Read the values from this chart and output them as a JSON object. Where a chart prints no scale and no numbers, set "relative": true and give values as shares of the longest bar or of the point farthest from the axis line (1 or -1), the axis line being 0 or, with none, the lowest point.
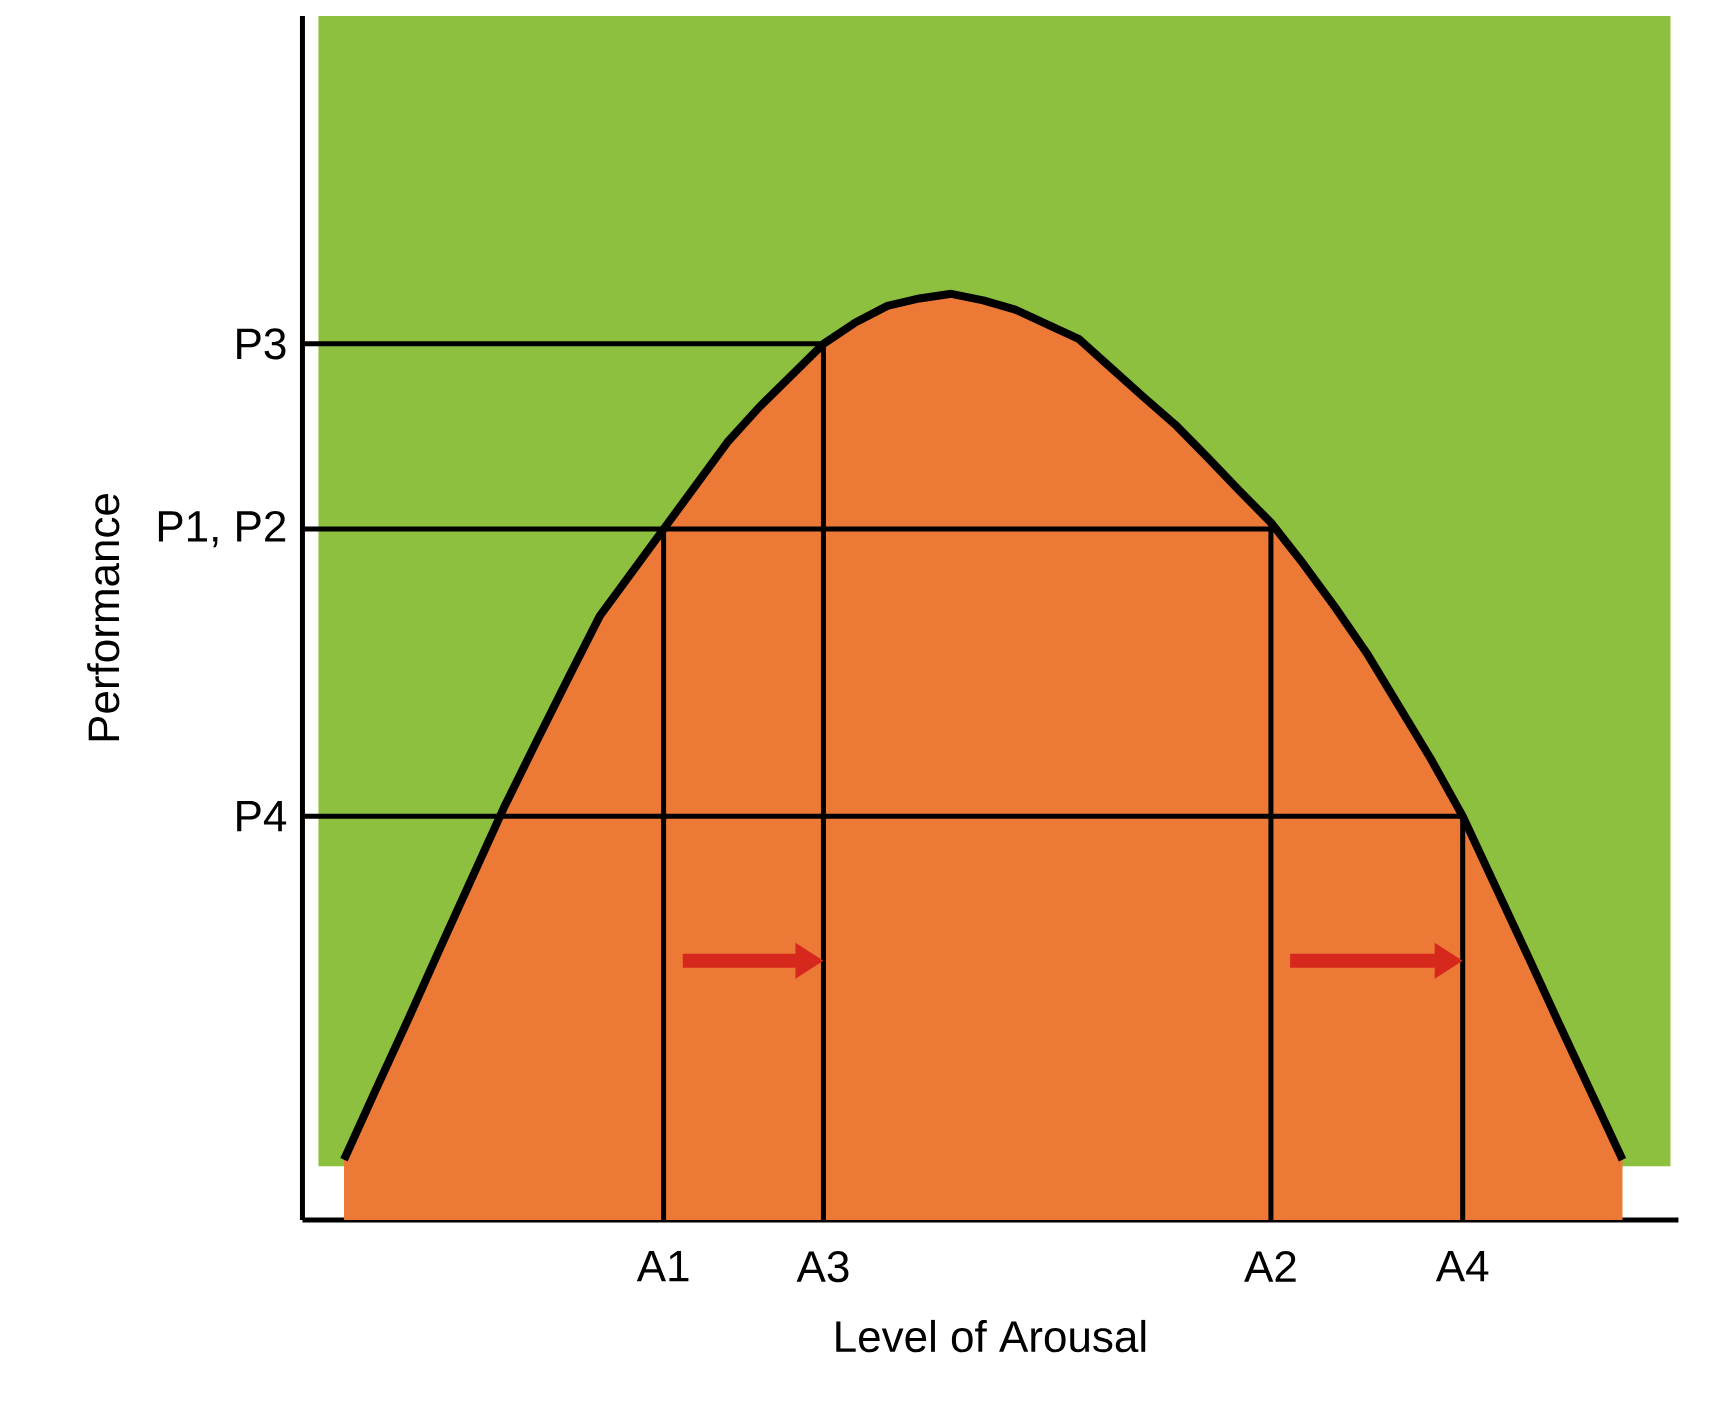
{
  "chart_data": {
    "type": "area",
    "relative": true,
    "xlabel": "Level of Arousal",
    "ylabel": "Performance",
    "categories": [
      null,
      null,
      null,
      null,
      null,
      null,
      null,
      null,
      null,
      null,
      "A1",
      null,
      null,
      null,
      null,
      "A3",
      null,
      null,
      null,
      null,
      null,
      null,
      null,
      null,
      null,
      null,
      null,
      null,
      null,
      "A2",
      null,
      null,
      null,
      null,
      null,
      "A4",
      null,
      null,
      null,
      null,
      null
    ],
    "values": [
      0.065,
      0.141,
      0.216,
      0.293,
      0.369,
      0.445,
      0.515,
      0.584,
      0.652,
      0.699,
      0.746,
      0.793,
      0.84,
      0.878,
      0.912,
      0.946,
      0.969,
      0.987,
      0.995,
      1.0,
      0.993,
      0.983,
      0.967,
      0.951,
      0.92,
      0.889,
      0.859,
      0.824,
      0.788,
      0.753,
      0.709,
      0.662,
      0.612,
      0.555,
      0.498,
      0.436,
      0.362,
      0.288,
      0.213,
      0.139,
      0.065
    ],
    "color": "#ec7a36",
    "ref_lines": [
      {
        "axis": "y",
        "value": 0.946,
        "label": "P3"
      },
      {
        "axis": "y",
        "value": 0.746,
        "label": "P1, P2"
      },
      {
        "axis": "y",
        "value": 0.436,
        "label": "P4"
      },
      {
        "axis": "x",
        "value": "A1"
      },
      {
        "axis": "x",
        "value": "A3"
      },
      {
        "axis": "x",
        "value": "A2"
      },
      {
        "axis": "x",
        "value": "A4"
      }
    ]
  }
}
